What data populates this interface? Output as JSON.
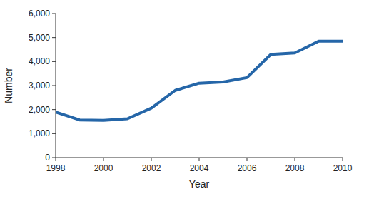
{
  "chart_data": {
    "type": "line",
    "x_label": "Year",
    "y_label": "Number",
    "x": [
      1998,
      1999,
      2000,
      2001,
      2002,
      2003,
      2004,
      2005,
      2006,
      2007,
      2008,
      2009,
      2010
    ],
    "values": [
      1900,
      1570,
      1550,
      1620,
      2060,
      2800,
      3100,
      3150,
      3330,
      4300,
      4360,
      4850,
      4850
    ],
    "color": "#2566a8",
    "xlim": [
      1998,
      2010
    ],
    "xticks": [
      1998,
      2000,
      2002,
      2004,
      2006,
      2008,
      2010
    ],
    "ylim": [
      0,
      6000
    ],
    "yticks": [
      0,
      {
        "value": 1000,
        "label": "1,000"
      },
      {
        "value": 2000,
        "label": "2,000"
      },
      {
        "value": 3000,
        "label": "3,000"
      },
      {
        "value": 4000,
        "label": "4,000"
      },
      {
        "value": 5000,
        "label": "5,000"
      },
      {
        "value": 6000,
        "label": "6,000"
      }
    ],
    "grid": false
  }
}
